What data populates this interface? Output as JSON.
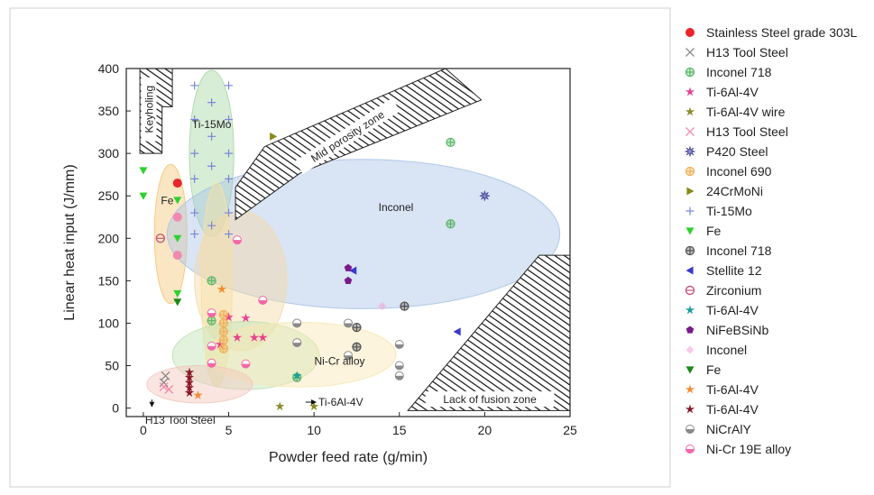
{
  "chart_data": {
    "type": "scatter",
    "xlabel": "Powder feed rate (g/min)",
    "ylabel": "Linear heat input (J/mm)",
    "xlim": [
      -1,
      25
    ],
    "ylim": [
      -10,
      400
    ],
    "xticks": [
      0,
      5,
      10,
      15,
      20,
      25
    ],
    "yticks": [
      0,
      50,
      100,
      150,
      200,
      250,
      300,
      350,
      400
    ],
    "grid": false,
    "legend_position": "right",
    "zones": [
      {
        "label": "Keyholing",
        "polygon": [
          [
            -0.2,
            400
          ],
          [
            1.7,
            400
          ],
          [
            1.7,
            355
          ],
          [
            1.1,
            355
          ],
          [
            1.1,
            300
          ],
          [
            -0.2,
            300
          ]
        ]
      },
      {
        "label": "Mid porosity zone",
        "polygon": [
          [
            5.4,
            260
          ],
          [
            7.1,
            308
          ],
          [
            17.7,
            400
          ],
          [
            19.8,
            363
          ],
          [
            9.2,
            277
          ],
          [
            5.4,
            222
          ]
        ]
      },
      {
        "label": "Lack of fusion zone",
        "polygon": [
          [
            15.5,
            -3
          ],
          [
            25,
            -3
          ],
          [
            25,
            180
          ],
          [
            23.2,
            180
          ]
        ]
      }
    ],
    "regions": [
      {
        "label": "Ti-15Mo",
        "color": "#a9d8a5",
        "cx": 4.0,
        "cy": 300,
        "rx": 1.3,
        "ry": 98,
        "rot": 0
      },
      {
        "label": "Fe",
        "color": "#f4c87a",
        "cx": 1.6,
        "cy": 205,
        "rx": 0.95,
        "ry": 82,
        "rot": 0
      },
      {
        "label": "Inconel",
        "color": "#aac4e6",
        "cx": 12.9,
        "cy": 205,
        "rx": 11.5,
        "ry": 88,
        "rot": 0
      },
      {
        "label": "",
        "color": "#f4e3a0",
        "cx": 4.3,
        "cy": 145,
        "rx": 0.9,
        "ry": 120,
        "rot": 0
      },
      {
        "label": "",
        "color": "#f6d9a6",
        "cx": 5.7,
        "cy": 150,
        "rx": 2.7,
        "ry": 82,
        "rot": 0
      },
      {
        "label": "",
        "color": "#bfe3b2",
        "cx": 6.0,
        "cy": 62,
        "rx": 4.3,
        "ry": 40,
        "rot": 0
      },
      {
        "label": "Ni-Cr alloy",
        "color": "#f8e7b3",
        "cx": 9.2,
        "cy": 63,
        "rx": 5.6,
        "ry": 38,
        "rot": 0
      },
      {
        "label": "H13 Tool Steel",
        "color": "#f3c6bd",
        "cx": 3.3,
        "cy": 28,
        "rx": 3.1,
        "ry": 22,
        "rot": 0
      }
    ],
    "annotations": [
      {
        "text": "Ti-6Al-4V",
        "x": 10.1,
        "y": 7
      },
      {
        "text": "H13 Tool Steel",
        "x": 0.1,
        "y": -6
      }
    ],
    "series": [
      {
        "name": "Stainless Steel grade 303L",
        "color": "#e8262b",
        "marker": "circle",
        "points": [
          [
            2,
            265
          ]
        ]
      },
      {
        "name": "H13 Tool Steel",
        "color": "#888888",
        "marker": "x",
        "points": [
          [
            1.3,
            38
          ],
          [
            1.2,
            30
          ]
        ]
      },
      {
        "name": "Inconel 718",
        "color": "#5fb86b",
        "marker": "circleplus",
        "points": [
          [
            18,
            313
          ],
          [
            18,
            217
          ],
          [
            4,
            150
          ],
          [
            4,
            103
          ],
          [
            9,
            36
          ]
        ]
      },
      {
        "name": "Ti-6Al-4V",
        "color": "#e8428e",
        "marker": "star",
        "points": [
          [
            6,
            106
          ],
          [
            6.5,
            83
          ],
          [
            5.5,
            83
          ],
          [
            7,
            83
          ],
          [
            5,
            107
          ],
          [
            4.5,
            75
          ]
        ]
      },
      {
        "name": "Ti-6Al-4V wire",
        "color": "#8a8a2a",
        "marker": "star",
        "points": [
          [
            8,
            2
          ],
          [
            10,
            2
          ]
        ]
      },
      {
        "name": "H13 Tool Steel",
        "color": "#f08aa8",
        "marker": "x",
        "points": [
          [
            1.2,
            25
          ],
          [
            1.5,
            22
          ]
        ]
      },
      {
        "name": "P420 Steel",
        "color": "#4b4b9a",
        "marker": "star8",
        "points": [
          [
            20,
            250
          ]
        ]
      },
      {
        "name": "Inconel 690",
        "color": "#f2b05a",
        "marker": "circleplus",
        "points": [
          [
            4.7,
            110
          ],
          [
            4.7,
            100
          ],
          [
            4.7,
            90
          ],
          [
            4.7,
            80
          ],
          [
            4.7,
            70
          ]
        ]
      },
      {
        "name": "24CrMoNi",
        "color": "#8a8a1a",
        "marker": "triangle-right",
        "points": [
          [
            7.6,
            320
          ]
        ]
      },
      {
        "name": "Ti-15Mo",
        "color": "#7a86d8",
        "marker": "plus",
        "points": [
          [
            3,
            380
          ],
          [
            5,
            380
          ],
          [
            4,
            360
          ],
          [
            3,
            340
          ],
          [
            5,
            340
          ],
          [
            4,
            320
          ],
          [
            3,
            300
          ],
          [
            5,
            300
          ],
          [
            4,
            285
          ],
          [
            3,
            270
          ],
          [
            5,
            270
          ],
          [
            3,
            230
          ],
          [
            5,
            230
          ],
          [
            4,
            215
          ],
          [
            3,
            205
          ],
          [
            5,
            205
          ]
        ]
      },
      {
        "name": "Fe",
        "color": "#2ed12e",
        "marker": "triangle-down",
        "points": [
          [
            0,
            280
          ],
          [
            0,
            250
          ],
          [
            2,
            245
          ],
          [
            2,
            200
          ],
          [
            2,
            135
          ]
        ]
      },
      {
        "name": "Inconel 718",
        "color": "#555555",
        "marker": "circleplus",
        "points": [
          [
            12.5,
            95
          ],
          [
            15.3,
            120
          ],
          [
            12.5,
            72
          ]
        ]
      },
      {
        "name": "Stellite 12",
        "color": "#3a3acc",
        "marker": "triangle-left",
        "points": [
          [
            12.3,
            162
          ],
          [
            18.4,
            90
          ]
        ]
      },
      {
        "name": "Zirconium",
        "color": "#c45a7a",
        "marker": "circle-open",
        "points": [
          [
            1,
            200
          ]
        ]
      },
      {
        "name": "Ti-6Al-4V",
        "color": "#1a9e9e",
        "marker": "star",
        "points": [
          [
            9,
            38
          ]
        ]
      },
      {
        "name": "NiFeBSiNb",
        "color": "#7a1a8a",
        "marker": "pentagon",
        "points": [
          [
            12,
            165
          ],
          [
            12,
            150
          ]
        ]
      },
      {
        "name": "Inconel",
        "color": "#f2a0d8",
        "marker": "diamond",
        "points": [
          [
            14,
            120
          ]
        ]
      },
      {
        "name": "Fe",
        "color": "#1a8a1a",
        "marker": "triangle-down",
        "points": [
          [
            2,
            125
          ]
        ]
      },
      {
        "name": "Ti-6Al-4V",
        "color": "#f28c30",
        "marker": "star",
        "points": [
          [
            4.6,
            140
          ],
          [
            3.2,
            15
          ]
        ]
      },
      {
        "name": "Ti-6Al-4V",
        "color": "#8a1a2a",
        "marker": "star",
        "points": [
          [
            2.7,
            42
          ],
          [
            2.7,
            36
          ],
          [
            2.7,
            30
          ],
          [
            2.7,
            24
          ],
          [
            2.7,
            18
          ]
        ]
      },
      {
        "name": "NiCrAlY",
        "color": "#8a8a8a",
        "marker": "half-circle",
        "points": [
          [
            9,
            100
          ],
          [
            9,
            77
          ],
          [
            12,
            100
          ],
          [
            12,
            62
          ],
          [
            15,
            75
          ],
          [
            15,
            50
          ],
          [
            15,
            38
          ]
        ]
      },
      {
        "name": "Ni-Cr 19E alloy",
        "color": "#f268a8",
        "marker": "half-circle",
        "points": [
          [
            4,
            112
          ],
          [
            4,
            73
          ],
          [
            4,
            53
          ],
          [
            5.5,
            198
          ],
          [
            6,
            52
          ],
          [
            7,
            127
          ]
        ]
      },
      {
        "name": "",
        "color": "#f28ab0",
        "marker": "circle",
        "points": [
          [
            2,
            225
          ],
          [
            2,
            180
          ]
        ]
      }
    ]
  }
}
